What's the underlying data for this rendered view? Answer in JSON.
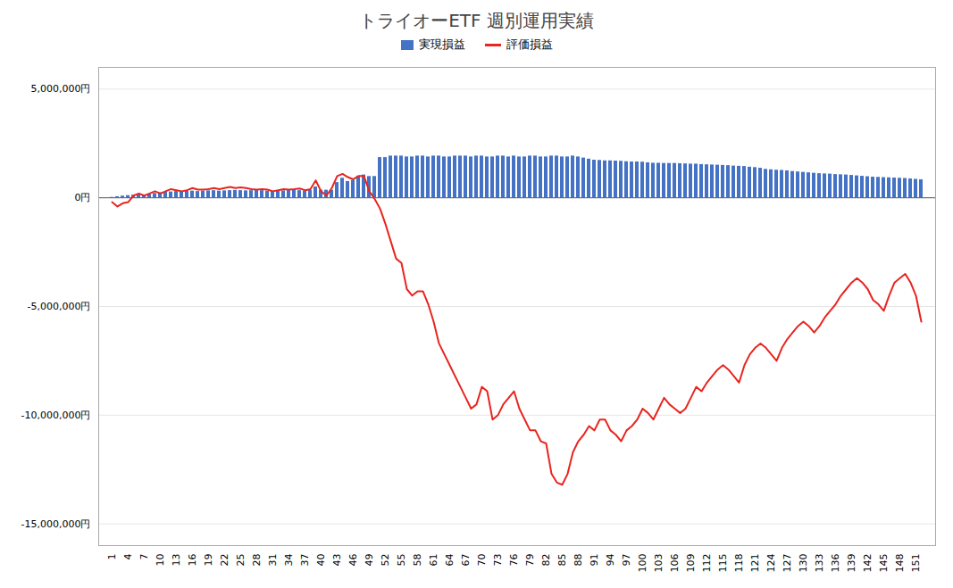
{
  "chart_data": {
    "type": "bar",
    "title": "トライオーETF 週別運用実績",
    "categories": [
      "1",
      null,
      null,
      "4",
      null,
      null,
      "7",
      null,
      null,
      "10",
      null,
      null,
      "13",
      null,
      null,
      "16",
      null,
      null,
      "19",
      null,
      null,
      "22",
      null,
      null,
      "25",
      null,
      null,
      "28",
      null,
      null,
      "31",
      null,
      null,
      "34",
      null,
      null,
      "37",
      null,
      null,
      "40",
      null,
      null,
      "43",
      null,
      null,
      "46",
      null,
      null,
      "49",
      null,
      null,
      "52",
      null,
      null,
      "55",
      null,
      null,
      "58",
      null,
      null,
      "61",
      null,
      null,
      "64",
      null,
      null,
      "67",
      null,
      null,
      "70",
      null,
      null,
      "73",
      null,
      null,
      "76",
      null,
      null,
      "79",
      null,
      null,
      "82",
      null,
      null,
      "85",
      null,
      null,
      "88",
      null,
      null,
      "91",
      null,
      null,
      "94",
      null,
      null,
      "97",
      null,
      null,
      "100",
      null,
      null,
      "103",
      null,
      null,
      "106",
      null,
      null,
      "109",
      null,
      null,
      "112",
      null,
      null,
      "115",
      null,
      null,
      "118",
      null,
      null,
      "121",
      null,
      null,
      "124",
      null,
      null,
      "127",
      null,
      null,
      "130",
      null,
      null,
      "133",
      null,
      null,
      "136",
      null,
      null,
      "139",
      null,
      null,
      "142",
      null,
      null,
      "145",
      null,
      null,
      "148",
      null,
      null,
      "151",
      null
    ],
    "series": [
      {
        "name": "実現損益",
        "type": "bar",
        "color": "#4472c4",
        "values": [
          20000,
          50000,
          80000,
          100000,
          120000,
          150000,
          130000,
          160000,
          200000,
          230000,
          250000,
          270000,
          290000,
          280000,
          300000,
          310000,
          290000,
          310000,
          320000,
          330000,
          310000,
          320000,
          330000,
          340000,
          330000,
          320000,
          330000,
          340000,
          330000,
          310000,
          300000,
          320000,
          320000,
          340000,
          350000,
          330000,
          320000,
          350000,
          500000,
          350000,
          350000,
          350000,
          700000,
          900000,
          750000,
          800000,
          1000000,
          1050000,
          980000,
          980000,
          1850000,
          1850000,
          1920000,
          1920000,
          1920000,
          1880000,
          1880000,
          1920000,
          1920000,
          1880000,
          1920000,
          1920000,
          1880000,
          1880000,
          1920000,
          1920000,
          1920000,
          1880000,
          1920000,
          1920000,
          1880000,
          1880000,
          1920000,
          1920000,
          1880000,
          1920000,
          1880000,
          1880000,
          1920000,
          1920000,
          1880000,
          1880000,
          1920000,
          1920000,
          1880000,
          1880000,
          1920000,
          1880000,
          1830000,
          1780000,
          1730000,
          1720000,
          1700000,
          1700000,
          1690000,
          1680000,
          1660000,
          1650000,
          1650000,
          1640000,
          1610000,
          1590000,
          1590000,
          1580000,
          1580000,
          1580000,
          1570000,
          1560000,
          1550000,
          1550000,
          1530000,
          1520000,
          1510000,
          1500000,
          1490000,
          1480000,
          1460000,
          1450000,
          1440000,
          1410000,
          1390000,
          1360000,
          1310000,
          1290000,
          1270000,
          1260000,
          1240000,
          1210000,
          1190000,
          1170000,
          1150000,
          1130000,
          1110000,
          1100000,
          1090000,
          1070000,
          1060000,
          1050000,
          1030000,
          1010000,
          990000,
          970000,
          950000,
          940000,
          930000,
          920000,
          910000,
          900000,
          890000,
          870000,
          850000,
          830000
        ]
      },
      {
        "name": "評価損益",
        "type": "line",
        "color": "#e8251f",
        "values": [
          -200000,
          -400000,
          -250000,
          -200000,
          100000,
          200000,
          100000,
          200000,
          300000,
          200000,
          300000,
          400000,
          350000,
          300000,
          350000,
          450000,
          380000,
          380000,
          400000,
          450000,
          400000,
          450000,
          500000,
          450000,
          480000,
          450000,
          400000,
          380000,
          400000,
          380000,
          300000,
          350000,
          400000,
          380000,
          400000,
          430000,
          350000,
          400000,
          800000,
          300000,
          100000,
          450000,
          1000000,
          1100000,
          950000,
          850000,
          1000000,
          1000000,
          300000,
          -50000,
          -500000,
          -1200000,
          -2000000,
          -2800000,
          -3000000,
          -4200000,
          -4500000,
          -4300000,
          -4300000,
          -4900000,
          -5700000,
          -6700000,
          -7200000,
          -7700000,
          -8200000,
          -8700000,
          -9200000,
          -9700000,
          -9500000,
          -8700000,
          -8900000,
          -10200000,
          -10000000,
          -9500000,
          -9200000,
          -8900000,
          -9700000,
          -10200000,
          -10700000,
          -10700000,
          -11200000,
          -11300000,
          -12700000,
          -13100000,
          -13200000,
          -12700000,
          -11700000,
          -11200000,
          -10900000,
          -10500000,
          -10700000,
          -10200000,
          -10200000,
          -10700000,
          -10900000,
          -11200000,
          -10700000,
          -10500000,
          -10200000,
          -9700000,
          -9900000,
          -10200000,
          -9700000,
          -9200000,
          -9500000,
          -9700000,
          -9900000,
          -9700000,
          -9200000,
          -8700000,
          -8900000,
          -8500000,
          -8200000,
          -7900000,
          -7700000,
          -7900000,
          -8200000,
          -8500000,
          -7700000,
          -7200000,
          -6900000,
          -6700000,
          -6900000,
          -7200000,
          -7500000,
          -6900000,
          -6500000,
          -6200000,
          -5900000,
          -5700000,
          -5900000,
          -6200000,
          -5900000,
          -5500000,
          -5200000,
          -4900000,
          -4500000,
          -4200000,
          -3900000,
          -3700000,
          -3900000,
          -4200000,
          -4700000,
          -4900000,
          -5200000,
          -4500000,
          -3900000,
          -3700000,
          -3500000,
          -3900000,
          -4500000,
          -5700000
        ]
      }
    ],
    "ylim": [
      -16000000,
      6000000
    ],
    "yticks": [
      {
        "value": 5000000,
        "label": "5,000,000円"
      },
      {
        "value": 0,
        "label": "0円"
      },
      {
        "value": -5000000,
        "label": "-5,000,000円"
      },
      {
        "value": -10000000,
        "label": "-10,000,000円"
      },
      {
        "value": -15000000,
        "label": "-15,000,000円"
      }
    ],
    "grid": true,
    "legend": "upper center"
  }
}
